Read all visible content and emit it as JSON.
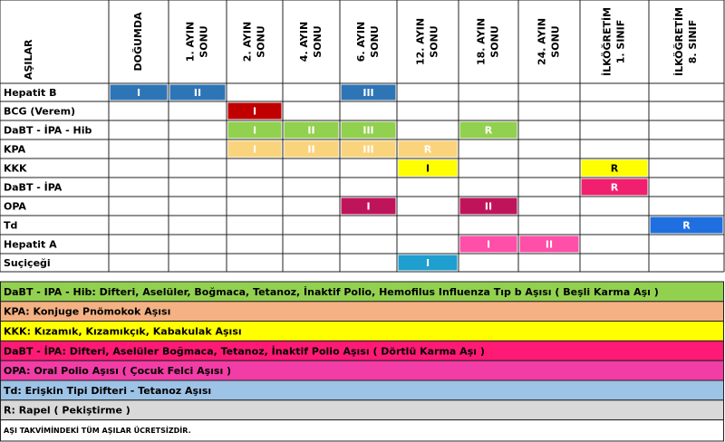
{
  "table": {
    "corner": "AŞILAR",
    "columns": [
      [
        "DOĞUMDA"
      ],
      [
        "1. AYIN",
        "SONU"
      ],
      [
        "2. AYIN",
        "SONU"
      ],
      [
        "4. AYIN",
        "SONU"
      ],
      [
        "6. AYIN",
        "SONU"
      ],
      [
        "12. AYIN",
        "SONU"
      ],
      [
        "18. AYIN",
        "SONU"
      ],
      [
        "24. AYIN",
        "SONU"
      ],
      [
        "İLKÖĞRETİM",
        "1. SINIF"
      ],
      [
        "İLKÖĞRETİM",
        "8. SINIF"
      ]
    ],
    "rows": [
      {
        "name": "Hepatit B",
        "color": "#2e75b6",
        "cells": [
          {
            "col": 0,
            "label": "I"
          },
          {
            "col": 1,
            "label": "II"
          },
          {
            "col": 4,
            "label": "III"
          }
        ]
      },
      {
        "name": "BCG (Verem)",
        "color": "#c00000",
        "cells": [
          {
            "col": 2,
            "label": "I"
          }
        ]
      },
      {
        "name": "DaBT - İPA - Hib",
        "color": "#92d050",
        "cells": [
          {
            "col": 2,
            "label": "I"
          },
          {
            "col": 3,
            "label": "II"
          },
          {
            "col": 4,
            "label": "III"
          },
          {
            "col": 6,
            "label": "R"
          }
        ]
      },
      {
        "name": "KPA",
        "color": "#fad47d",
        "cells": [
          {
            "col": 2,
            "label": "I"
          },
          {
            "col": 3,
            "label": "II"
          },
          {
            "col": 4,
            "label": "III"
          },
          {
            "col": 5,
            "label": "R"
          }
        ]
      },
      {
        "name": "KKK",
        "color": "#ffff00",
        "textColor": "#000000",
        "cells": [
          {
            "col": 5,
            "label": "I"
          },
          {
            "col": 8,
            "label": "R"
          }
        ]
      },
      {
        "name": "DaBT - İPA",
        "color": "#f0206e",
        "cells": [
          {
            "col": 8,
            "label": "R"
          }
        ]
      },
      {
        "name": "OPA",
        "color": "#c0145a",
        "cells": [
          {
            "col": 4,
            "label": "I"
          },
          {
            "col": 6,
            "label": "II"
          }
        ]
      },
      {
        "name": "Td",
        "color": "#1f6fe0",
        "cells": [
          {
            "col": 9,
            "label": "R"
          }
        ]
      },
      {
        "name": "Hepatit A",
        "color": "#ff4fa8",
        "cells": [
          {
            "col": 6,
            "label": "I"
          },
          {
            "col": 7,
            "label": "II"
          }
        ]
      },
      {
        "name": "Suçiçeği",
        "color": "#1e9fd0",
        "cells": [
          {
            "col": 5,
            "label": "I"
          }
        ]
      }
    ]
  },
  "legend": [
    {
      "text": "DaBT - IPA - Hib: Difteri, Aselüler, Boğmaca, Tetanoz, İnaktif Polio, Hemofilus Influenza Tıp b Aşısı ( Beşli Karma Aşı )",
      "color": "#92d050"
    },
    {
      "text": "KPA: Konjuge Pnömokok Aşısı",
      "color": "#f4b183"
    },
    {
      "text": "KKK: Kızamık, Kızamıkçık, Kabakulak Aşısı",
      "color": "#ffff00"
    },
    {
      "text": "DaBT - İPA: Difteri, Aselüler Boğmaca, Tetanoz, İnaktif Polio Aşısı ( Dörtlü Karma Aşı )",
      "color": "#ff1a75"
    },
    {
      "text": "OPA: Oral Polio Aşısı ( Çocuk Felci Aşısı )",
      "color": "#f23ca6"
    },
    {
      "text": "Td: Erişkin Tipi Difteri - Tetanoz Aşısı",
      "color": "#9dc3e6"
    },
    {
      "text": "R: Rapel ( Pekiştirme )",
      "color": "#d9d9d9"
    }
  ],
  "note": "AŞI TAKVİMİNDEKİ TÜM AŞILAR ÜCRETSİZDİR."
}
